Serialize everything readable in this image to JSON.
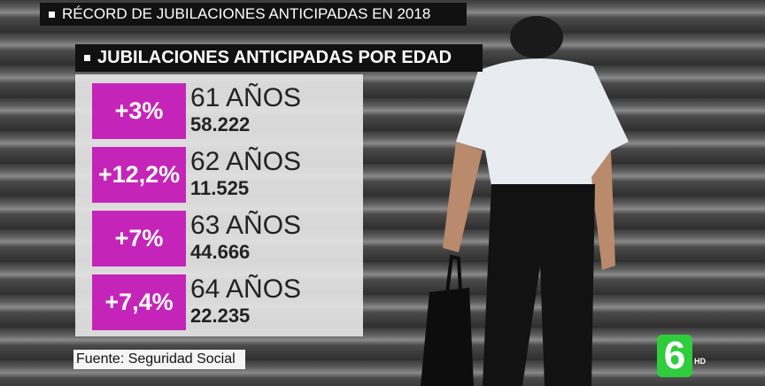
{
  "header": {
    "title": "RÉCORD DE JUBILACIONES ANTICIPADAS EN 2018"
  },
  "panel": {
    "title": "JUBILACIONES ANTICIPADAS POR EDAD",
    "rows": [
      {
        "change": "+3%",
        "age": "61 AÑOS",
        "count": "58.222"
      },
      {
        "change": "+12,2%",
        "age": "62 AÑOS",
        "count": "11.525"
      },
      {
        "change": "+7%",
        "age": "63 AÑOS",
        "count": "44.666"
      },
      {
        "change": "+7,4%",
        "age": "64 AÑOS",
        "count": "22.235"
      }
    ]
  },
  "source": "Fuente: Seguridad Social",
  "logo": {
    "mark": "6",
    "badge": "HD"
  }
}
